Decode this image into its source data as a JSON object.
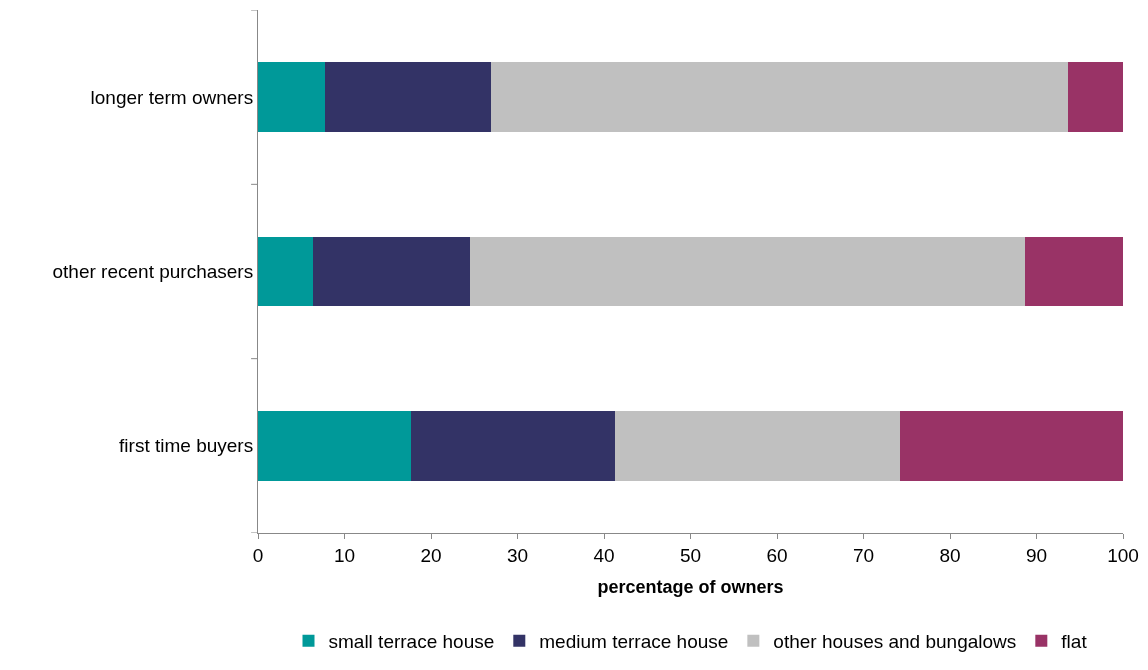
{
  "chart_data": {
    "type": "bar",
    "orientation": "horizontal",
    "stacked": true,
    "xlabel": "percentage of owners",
    "categories": [
      "longer term owners",
      "other recent purchasers",
      "first time buyers"
    ],
    "series": [
      {
        "name": "small terrace house",
        "color": "#009999",
        "values": [
          7.7,
          6.4,
          17.7
        ]
      },
      {
        "name": "medium terrace house",
        "color": "#333366",
        "values": [
          19.2,
          18.1,
          23.6
        ]
      },
      {
        "name": "other houses and bungalows",
        "color": "#c0c0c0",
        "values": [
          66.7,
          64.2,
          32.9
        ]
      },
      {
        "name": "flat",
        "color": "#993366",
        "values": [
          6.4,
          11.3,
          25.8
        ]
      }
    ],
    "xlim": [
      0,
      100
    ],
    "xticks": [
      0,
      10,
      20,
      30,
      40,
      50,
      60,
      70,
      80,
      90,
      100
    ],
    "legend": "bottom"
  }
}
